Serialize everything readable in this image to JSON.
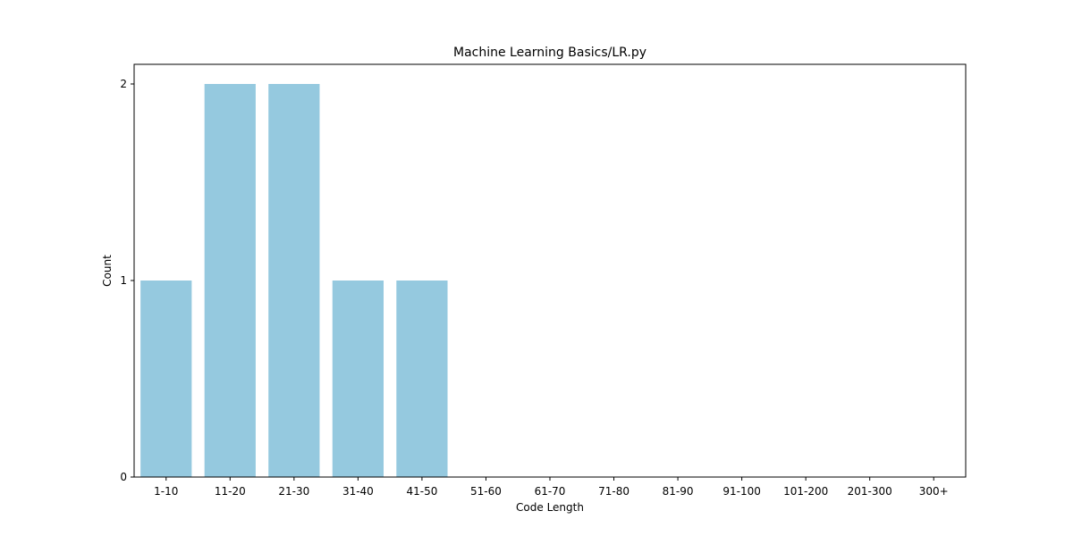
{
  "chart_data": {
    "type": "bar",
    "title": "Machine Learning Basics/LR.py",
    "xlabel": "Code Length",
    "ylabel": "Count",
    "categories": [
      "1-10",
      "11-20",
      "21-30",
      "31-40",
      "41-50",
      "51-60",
      "61-70",
      "71-80",
      "81-90",
      "91-100",
      "101-200",
      "201-300",
      "300+"
    ],
    "values": [
      1,
      2,
      2,
      1,
      1,
      0,
      0,
      0,
      0,
      0,
      0,
      0,
      0
    ],
    "ylim": [
      0,
      2.1
    ],
    "yticks": [
      0,
      1,
      2
    ],
    "grid": false,
    "legend": "none",
    "bar_color": "#95c9df"
  }
}
